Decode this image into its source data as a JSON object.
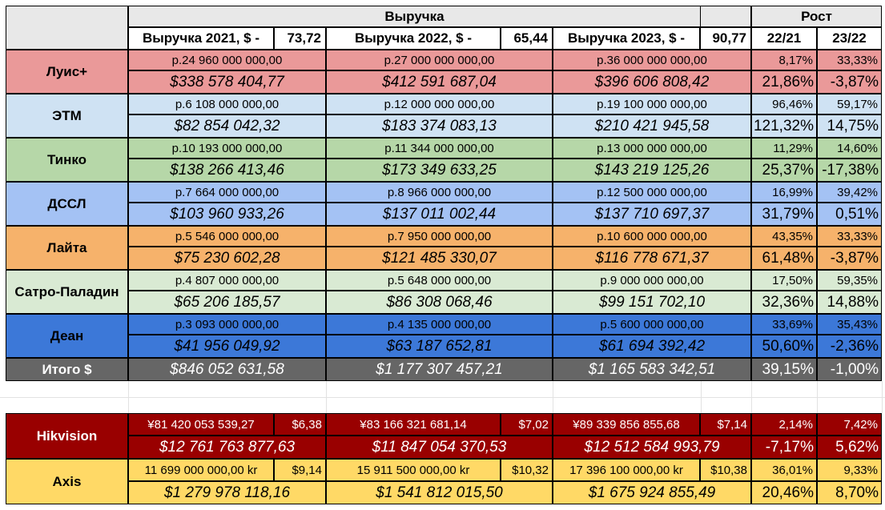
{
  "header": {
    "revenue_title": "Выручка",
    "growth_title": "Рост",
    "year2021_label": "Выручка 2021, $ -",
    "year2021_rate": "73,72",
    "year2022_label": "Выручка 2022, $ -",
    "year2022_rate": "65,44",
    "year2023_label": "Выручка 2023, $ -",
    "year2023_rate": "90,77",
    "growth_2221": "22/21",
    "growth_2322": "23/22"
  },
  "colors": {
    "luis": "#ea9999",
    "etm": "#cfe2f3",
    "tinko": "#b6d7a8",
    "dssl": "#a4c2f4",
    "laita": "#f6b26b",
    "satro": "#d9ead3",
    "dean": "#3c78d8",
    "total": "#666666",
    "hikvision": "#990000",
    "axis": "#ffd966"
  },
  "rows": [
    {
      "name": "Луис+",
      "rub": [
        "р.24 960 000 000,00",
        "р.27 000 000 000,00",
        "р.36 000 000 000,00"
      ],
      "usd": [
        "$338 578 404,77",
        "$412 591 687,04",
        "$396 606 808,42"
      ],
      "g_rub": [
        "8,17%",
        "33,33%"
      ],
      "g_usd": [
        "21,86%",
        "-3,87%"
      ]
    },
    {
      "name": "ЭТМ",
      "rub": [
        "р.6 108 000 000,00",
        "р.12 000 000 000,00",
        "р.19 100 000 000,00"
      ],
      "usd": [
        "$82 854 042,32",
        "$183 374 083,13",
        "$210 421 945,58"
      ],
      "g_rub": [
        "96,46%",
        "59,17%"
      ],
      "g_usd": [
        "121,32%",
        "14,75%"
      ]
    },
    {
      "name": "Тинко",
      "rub": [
        "р.10 193 000 000,00",
        "р.11 344 000 000,00",
        "р.13 000 000 000,00"
      ],
      "usd": [
        "$138 266 413,46",
        "$173 349 633,25",
        "$143 219 125,26"
      ],
      "g_rub": [
        "11,29%",
        "14,60%"
      ],
      "g_usd": [
        "25,37%",
        "-17,38%"
      ]
    },
    {
      "name": "ДССЛ",
      "rub": [
        "р.7 664 000 000,00",
        "р.8 966 000 000,00",
        "р.12 500 000 000,00"
      ],
      "usd": [
        "$103 960 933,26",
        "$137 011 002,44",
        "$137 710 697,37"
      ],
      "g_rub": [
        "16,99%",
        "39,42%"
      ],
      "g_usd": [
        "31,79%",
        "0,51%"
      ]
    },
    {
      "name": "Лайта",
      "rub": [
        "р.5 546 000 000,00",
        "р.7 950 000 000,00",
        "р.10 600 000 000,00"
      ],
      "usd": [
        "$75 230 602,28",
        "$121 485 330,07",
        "$116 778 671,37"
      ],
      "g_rub": [
        "43,35%",
        "33,33%"
      ],
      "g_usd": [
        "61,48%",
        "-3,87%"
      ]
    },
    {
      "name": "Сатро-Паладин",
      "rub": [
        "р.4 807 000 000,00",
        "р.5 648 000 000,00",
        "р.9 000 000 000,00"
      ],
      "usd": [
        "$65 206 185,57",
        "$86 308 068,46",
        "$99 151 702,10"
      ],
      "g_rub": [
        "17,50%",
        "59,35%"
      ],
      "g_usd": [
        "32,36%",
        "14,88%"
      ]
    },
    {
      "name": "Деан",
      "rub": [
        "р.3 093 000 000,00",
        "р.4 135 000 000,00",
        "р.5 600 000 000,00"
      ],
      "usd": [
        "$41 956 049,92",
        "$63 187 652,81",
        "$61 694 392,42"
      ],
      "g_rub": [
        "33,69%",
        "35,43%"
      ],
      "g_usd": [
        "50,60%",
        "-2,36%"
      ]
    }
  ],
  "total": {
    "name": "Итого $",
    "usd": [
      "$846 052 631,58",
      "$1 177 307 457,21",
      "$1 165 583 342,51"
    ],
    "growth": [
      "39,15%",
      "-1,00%"
    ]
  },
  "foreign": [
    {
      "name": "Hikvision",
      "local": [
        "¥81 420 053 539,27",
        "¥83 166 321 681,14",
        "¥89 339 856 855,68"
      ],
      "rate": [
        "$6,38",
        "$7,02",
        "$7,14"
      ],
      "usd": [
        "$12 761 763 877,63",
        "$11 847 054 370,53",
        "$12 512 584 993,79"
      ],
      "g_local": [
        "2,14%",
        "7,42%"
      ],
      "g_usd": [
        "-7,17%",
        "5,62%"
      ]
    },
    {
      "name": "Axis",
      "local": [
        "11 699 000 000,00 kr",
        "15 911 500 000,00 kr",
        "17 396 100 000,00 kr"
      ],
      "rate": [
        "$9,14",
        "$10,32",
        "$10,38"
      ],
      "usd": [
        "$1 279 978 118,16",
        "$1 541 812 015,50",
        "$1 675 924 855,49"
      ],
      "g_local": [
        "36,01%",
        "9,33%"
      ],
      "g_usd": [
        "20,46%",
        "8,70%"
      ]
    }
  ]
}
